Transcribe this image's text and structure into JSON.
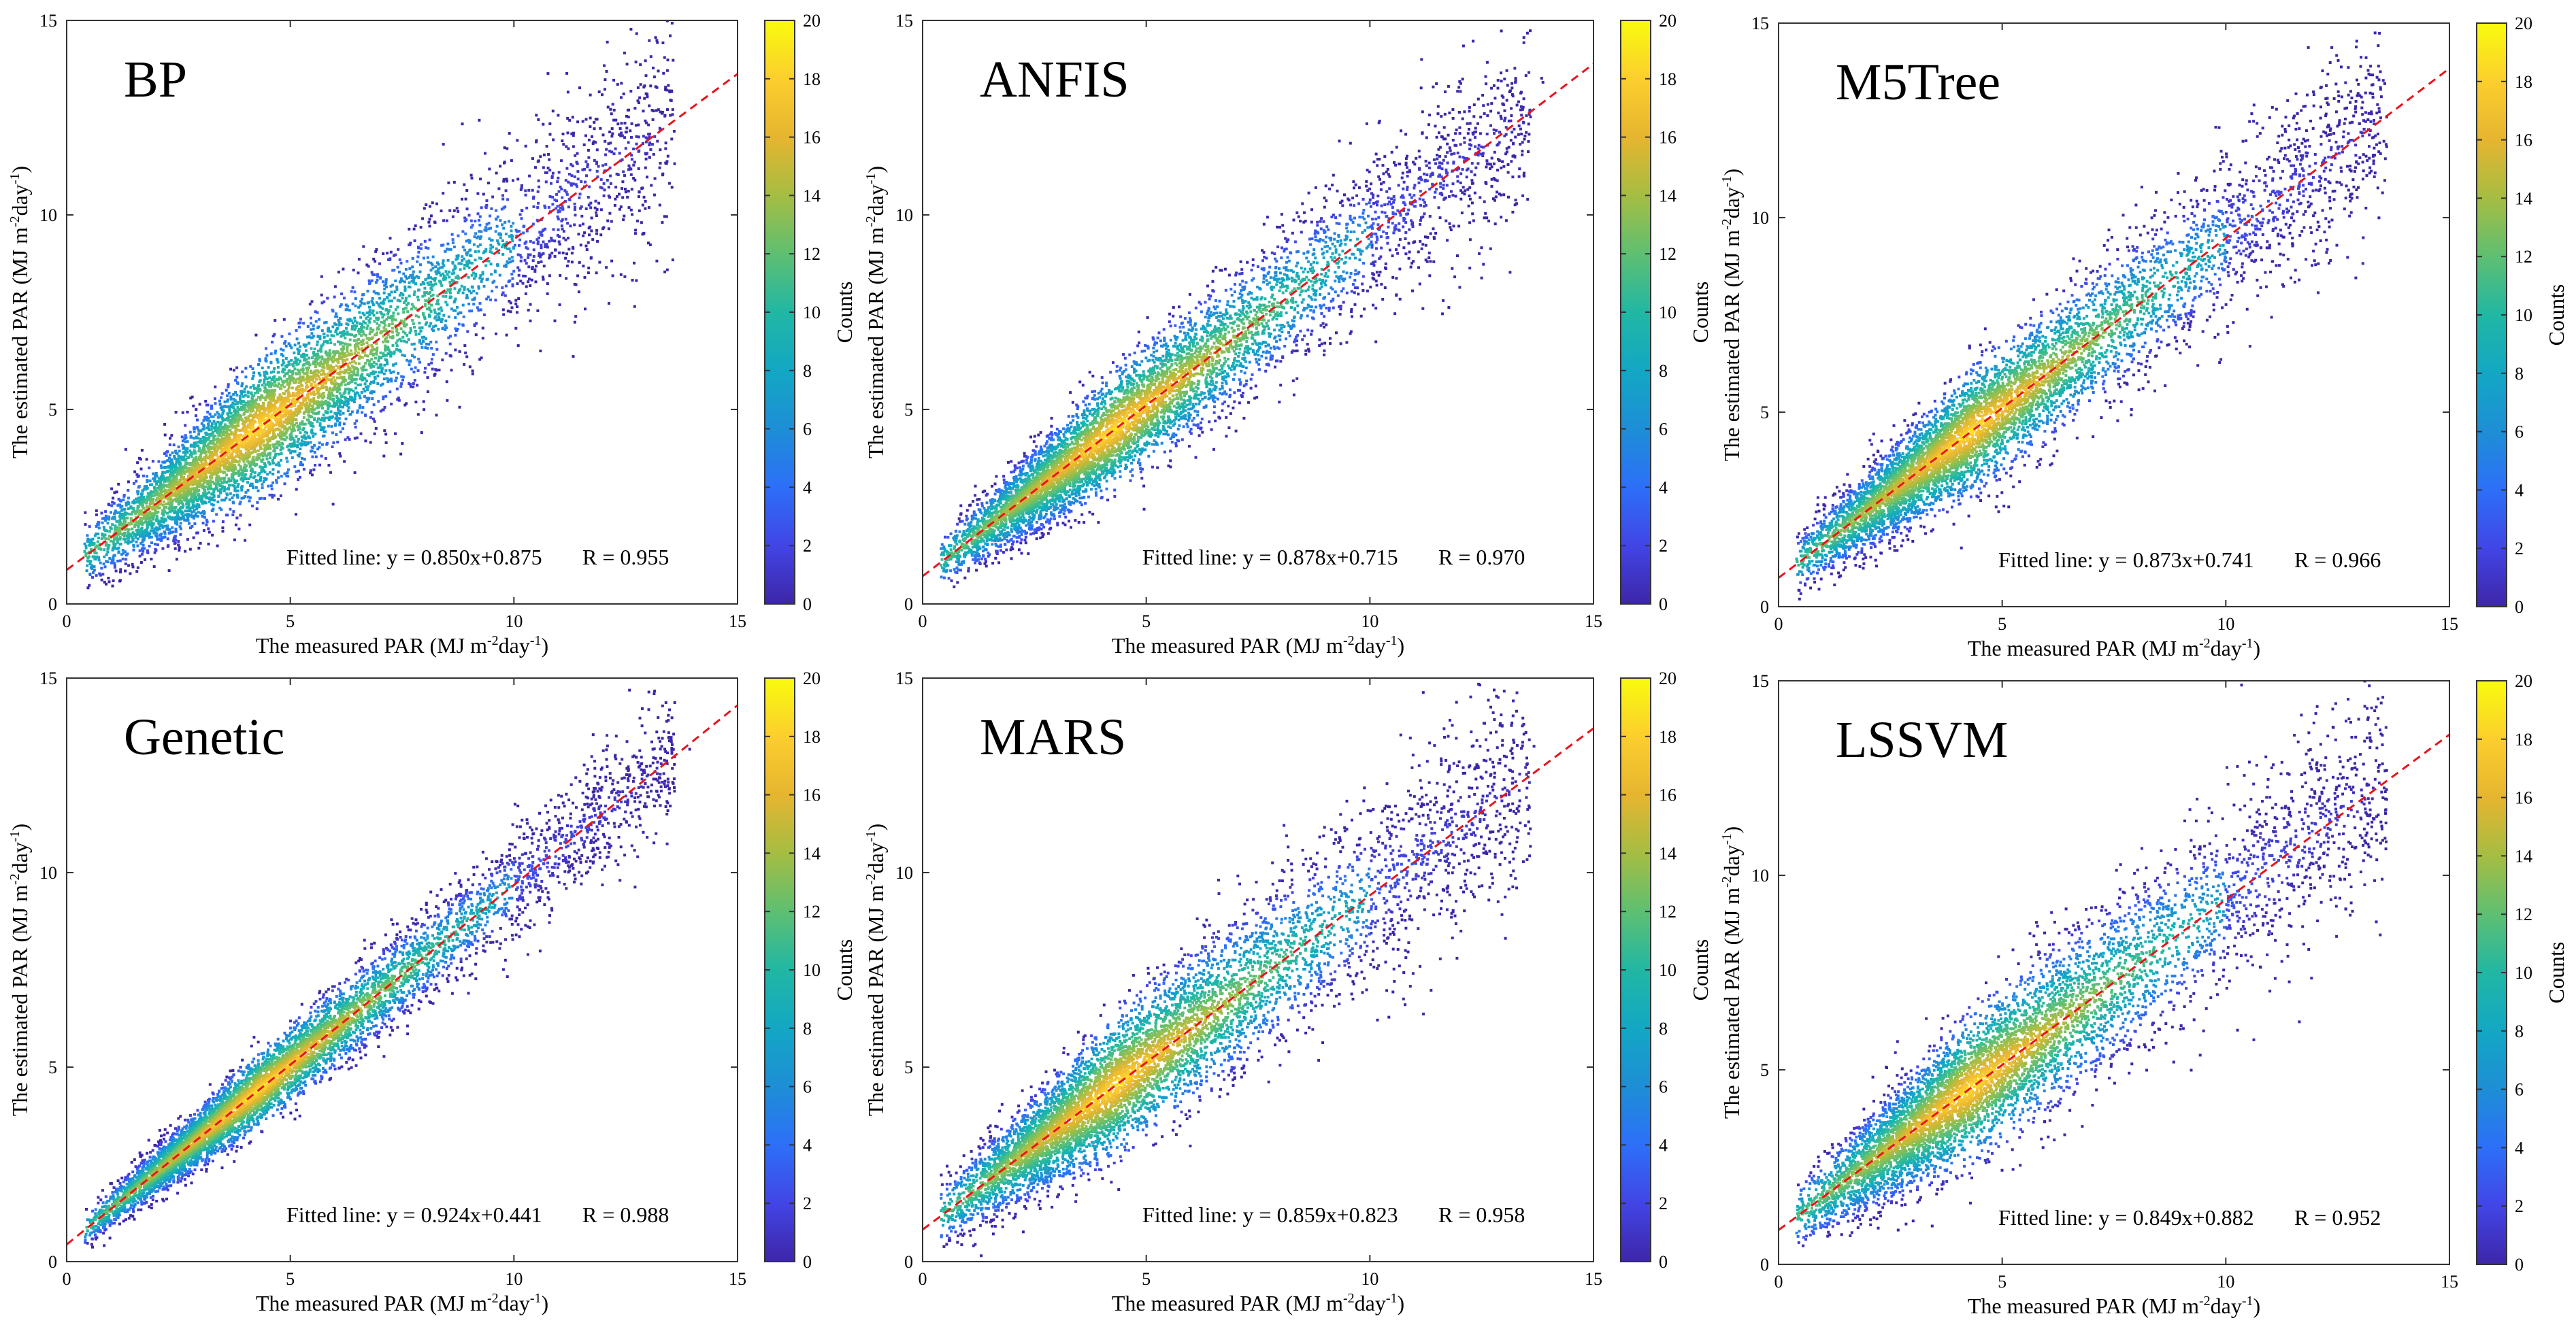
{
  "figure": {
    "xlabel_text": "The measured PAR (MJ m",
    "xlabel_sup": "-2",
    "xlabel_mid": "day",
    "xlabel_sup2": "-1",
    "xlabel_end": ")",
    "ylabel_text": "The estimated PAR (MJ m",
    "ylabel_sup": "-2",
    "ylabel_mid": "day",
    "ylabel_sup2": "-1",
    "ylabel_end": ")",
    "colorbar_label": "Counts",
    "colorbar_ticks": [
      "0",
      "2",
      "4",
      "6",
      "8",
      "10",
      "12",
      "14",
      "16",
      "18",
      "20"
    ],
    "colormap": [
      "#3e26a8",
      "#4245e5",
      "#2d6ff9",
      "#1e8ed6",
      "#13a7c4",
      "#21b7a4",
      "#5ebf72",
      "#a5bd43",
      "#e6b530",
      "#fcce2e",
      "#f9fb0e"
    ],
    "fit_line_color": "#e8141c"
  },
  "chart_data": [
    {
      "type": "scatter",
      "title": "BP",
      "xlim": [
        0,
        15
      ],
      "ylim": [
        0,
        15
      ],
      "xticks": [
        "0",
        "5",
        "10",
        "15"
      ],
      "yticks": [
        "0",
        "5",
        "10",
        "15"
      ],
      "fit": {
        "slope": 0.85,
        "intercept": 0.875
      },
      "fit_label": "Fitted line: y = 0.850x+0.875",
      "r_label": "R = 0.955",
      "spread": 0.95,
      "colorbar_range": [
        0,
        20
      ]
    },
    {
      "type": "scatter",
      "title": "ANFIS",
      "xlim": [
        0,
        15
      ],
      "ylim": [
        0,
        15
      ],
      "xticks": [
        "0",
        "5",
        "10",
        "15"
      ],
      "yticks": [
        "0",
        "5",
        "10",
        "15"
      ],
      "fit": {
        "slope": 0.878,
        "intercept": 0.715
      },
      "fit_label": "Fitted line: y = 0.878x+0.715",
      "r_label": "R = 0.970",
      "spread": 0.78,
      "colorbar_range": [
        0,
        20
      ]
    },
    {
      "type": "scatter",
      "title": "M5Tree",
      "xlim": [
        0,
        15
      ],
      "ylim": [
        0,
        15
      ],
      "xticks": [
        "0",
        "5",
        "10",
        "15"
      ],
      "yticks": [
        "0",
        "5",
        "10",
        "15"
      ],
      "fit": {
        "slope": 0.873,
        "intercept": 0.741
      },
      "fit_label": "Fitted line: y = 0.873x+0.741",
      "r_label": "R = 0.966",
      "spread": 0.82,
      "colorbar_range": [
        0,
        20
      ]
    },
    {
      "type": "scatter",
      "title": "Genetic",
      "xlim": [
        0,
        15
      ],
      "ylim": [
        0,
        15
      ],
      "xticks": [
        "0",
        "5",
        "10",
        "15"
      ],
      "yticks": [
        "0",
        "5",
        "10",
        "15"
      ],
      "fit": {
        "slope": 0.924,
        "intercept": 0.441
      },
      "fit_label": "Fitted line: y = 0.924x+0.441",
      "r_label": "R = 0.988",
      "spread": 0.5,
      "colorbar_range": [
        0,
        20
      ]
    },
    {
      "type": "scatter",
      "title": "MARS",
      "xlim": [
        0,
        15
      ],
      "ylim": [
        0,
        15
      ],
      "xticks": [
        "0",
        "5",
        "10",
        "15"
      ],
      "yticks": [
        "0",
        "5",
        "10",
        "15"
      ],
      "fit": {
        "slope": 0.859,
        "intercept": 0.823
      },
      "fit_label": "Fitted line: y = 0.859x+0.823",
      "r_label": "R = 0.958",
      "spread": 0.92,
      "colorbar_range": [
        0,
        20
      ]
    },
    {
      "type": "scatter",
      "title": "LSSVM",
      "xlim": [
        0,
        15
      ],
      "ylim": [
        0,
        15
      ],
      "xticks": [
        "0",
        "5",
        "10",
        "15"
      ],
      "yticks": [
        "0",
        "5",
        "10",
        "15"
      ],
      "fit": {
        "slope": 0.849,
        "intercept": 0.882
      },
      "fit_label": "Fitted line: y = 0.849x+0.882",
      "r_label": "R = 0.952",
      "spread": 0.97,
      "colorbar_range": [
        0,
        20
      ]
    }
  ]
}
